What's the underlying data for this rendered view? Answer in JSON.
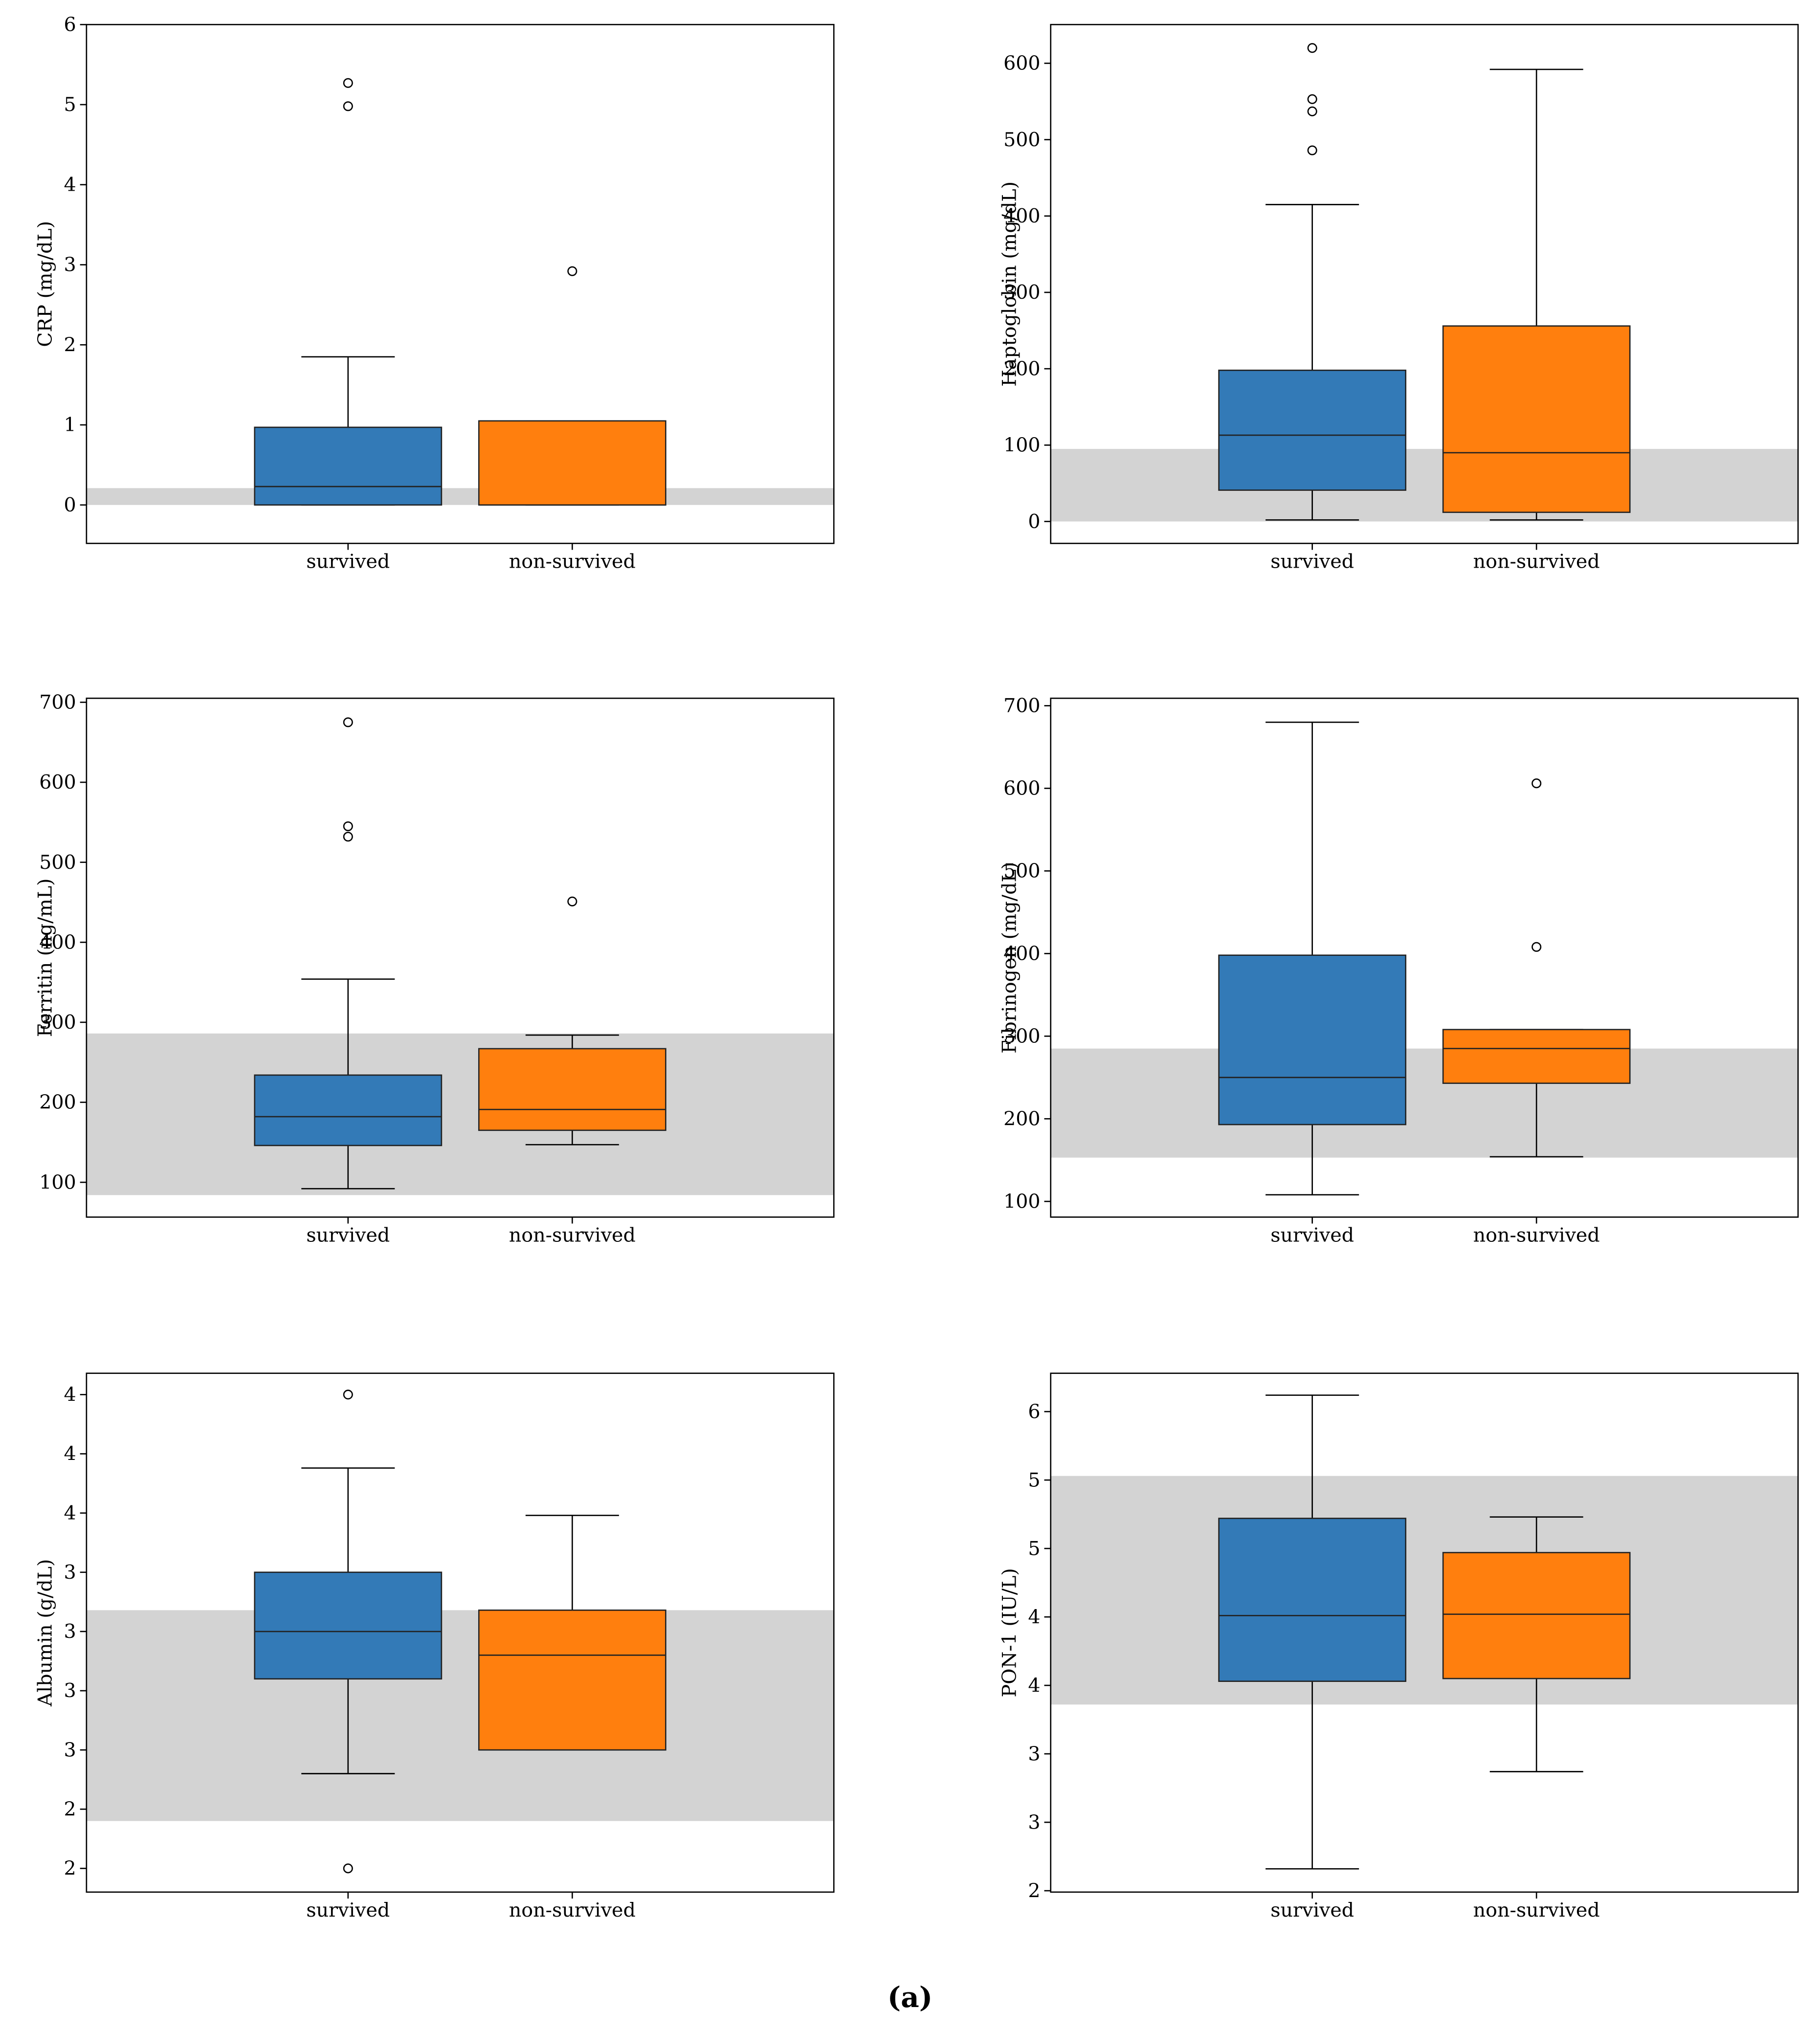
{
  "chart_data": [
    {
      "type": "box",
      "ylabel": "CRP (mg/dL)",
      "categories": [
        "survived",
        "non-survived"
      ],
      "ylim": [
        -0.48,
        6
      ],
      "yticks": [
        0,
        1,
        2,
        3,
        4,
        5,
        6
      ],
      "reference_range": [
        0,
        0.21
      ],
      "reference_color": "#d3d3d3",
      "series": [
        {
          "color": "#337ab7",
          "whislo": 0,
          "q1": 0,
          "med": 0.23,
          "q3": 0.97,
          "whishi": 1.85,
          "fliers": [
            5.27,
            4.98
          ]
        },
        {
          "color": "#ff7f0e",
          "whislo": 0,
          "q1": 0,
          "med": 0,
          "q3": 1.05,
          "whishi": 1.05,
          "fliers": [
            2.92
          ]
        }
      ]
    },
    {
      "type": "box",
      "ylabel": "Haptoglobin (mg/dL)",
      "categories": [
        "survived",
        "non-survived"
      ],
      "ylim": [
        -28.7,
        650.7
      ],
      "yticks": [
        0,
        100,
        200,
        300,
        400,
        500,
        600
      ],
      "reference_range": [
        0,
        95
      ],
      "reference_color": "#d3d3d3",
      "series": [
        {
          "color": "#337ab7",
          "whislo": 2,
          "q1": 41,
          "med": 113,
          "q3": 198,
          "whishi": 415,
          "fliers": [
            620,
            553,
            537,
            486
          ]
        },
        {
          "color": "#ff7f0e",
          "whislo": 2,
          "q1": 12,
          "med": 90,
          "q3": 256,
          "whishi": 592,
          "fliers": []
        }
      ]
    },
    {
      "type": "box",
      "ylabel": "Ferritin (ng/mL)",
      "categories": [
        "survived",
        "non-survived"
      ],
      "ylim": [
        56.5,
        705
      ],
      "yticks": [
        100,
        200,
        300,
        400,
        500,
        600,
        700
      ],
      "reference_range": [
        84,
        286
      ],
      "reference_color": "#d3d3d3",
      "series": [
        {
          "color": "#337ab7",
          "whislo": 92,
          "q1": 146,
          "med": 182,
          "q3": 234,
          "whishi": 354,
          "fliers": [
            675,
            545,
            532
          ]
        },
        {
          "color": "#ff7f0e",
          "whislo": 147,
          "q1": 165,
          "med": 191,
          "q3": 267,
          "whishi": 284,
          "fliers": [
            451
          ]
        }
      ]
    },
    {
      "type": "box",
      "ylabel": "Fibrinogen (mg/dL)",
      "categories": [
        "survived",
        "non-survived"
      ],
      "ylim": [
        81,
        709
      ],
      "yticks": [
        100,
        200,
        300,
        400,
        500,
        600,
        700
      ],
      "reference_range": [
        153,
        285
      ],
      "reference_color": "#d3d3d3",
      "series": [
        {
          "color": "#337ab7",
          "whislo": 108,
          "q1": 193,
          "med": 250,
          "q3": 398,
          "whishi": 680,
          "fliers": []
        },
        {
          "color": "#ff7f0e",
          "whislo": 154,
          "q1": 243,
          "med": 285,
          "q3": 308,
          "whishi": 308,
          "fliers": [
            606,
            408
          ]
        }
      ]
    },
    {
      "type": "box",
      "ylabel": "Albumin (g/dL)",
      "categories": [
        "survived",
        "non-survived"
      ],
      "ylim": [
        1.9,
        4.09
      ],
      "yticks": [
        {
          "value": 2.0,
          "label": "2"
        },
        {
          "value": 2.25,
          "label": "2"
        },
        {
          "value": 2.5,
          "label": "3"
        },
        {
          "value": 2.75,
          "label": "3"
        },
        {
          "value": 3.0,
          "label": "3"
        },
        {
          "value": 3.25,
          "label": "3"
        },
        {
          "value": 3.5,
          "label": "4"
        },
        {
          "value": 3.75,
          "label": "4"
        },
        {
          "value": 4.0,
          "label": "4"
        }
      ],
      "reference_range": [
        2.2,
        3.09
      ],
      "reference_color": "#d3d3d3",
      "series": [
        {
          "color": "#337ab7",
          "whislo": 2.4,
          "q1": 2.8,
          "med": 3.0,
          "q3": 3.25,
          "whishi": 3.69,
          "fliers": [
            4.0,
            2.0
          ]
        },
        {
          "color": "#ff7f0e",
          "whislo": 2.5,
          "q1": 2.5,
          "med": 2.9,
          "q3": 3.09,
          "whishi": 3.49,
          "fliers": []
        }
      ]
    },
    {
      "type": "box",
      "ylabel": "PON-1 (IU/L)",
      "categories": [
        "survived",
        "non-survived"
      ],
      "ylim": [
        1.99,
        5.78
      ],
      "yticks": [
        {
          "value": 2.0,
          "label": "2"
        },
        {
          "value": 2.5,
          "label": "3"
        },
        {
          "value": 3.0,
          "label": "3"
        },
        {
          "value": 3.5,
          "label": "4"
        },
        {
          "value": 4.0,
          "label": "4"
        },
        {
          "value": 4.5,
          "label": "5"
        },
        {
          "value": 5.0,
          "label": "5"
        },
        {
          "value": 5.5,
          "label": "6"
        }
      ],
      "reference_range": [
        3.36,
        5.03
      ],
      "reference_color": "#d3d3d3",
      "series": [
        {
          "color": "#337ab7",
          "whislo": 2.16,
          "q1": 3.53,
          "med": 4.01,
          "q3": 4.72,
          "whishi": 5.62,
          "fliers": []
        },
        {
          "color": "#ff7f0e",
          "whislo": 2.87,
          "q1": 3.55,
          "med": 4.02,
          "q3": 4.47,
          "whishi": 4.73,
          "fliers": []
        }
      ]
    }
  ],
  "caption": "(a)"
}
